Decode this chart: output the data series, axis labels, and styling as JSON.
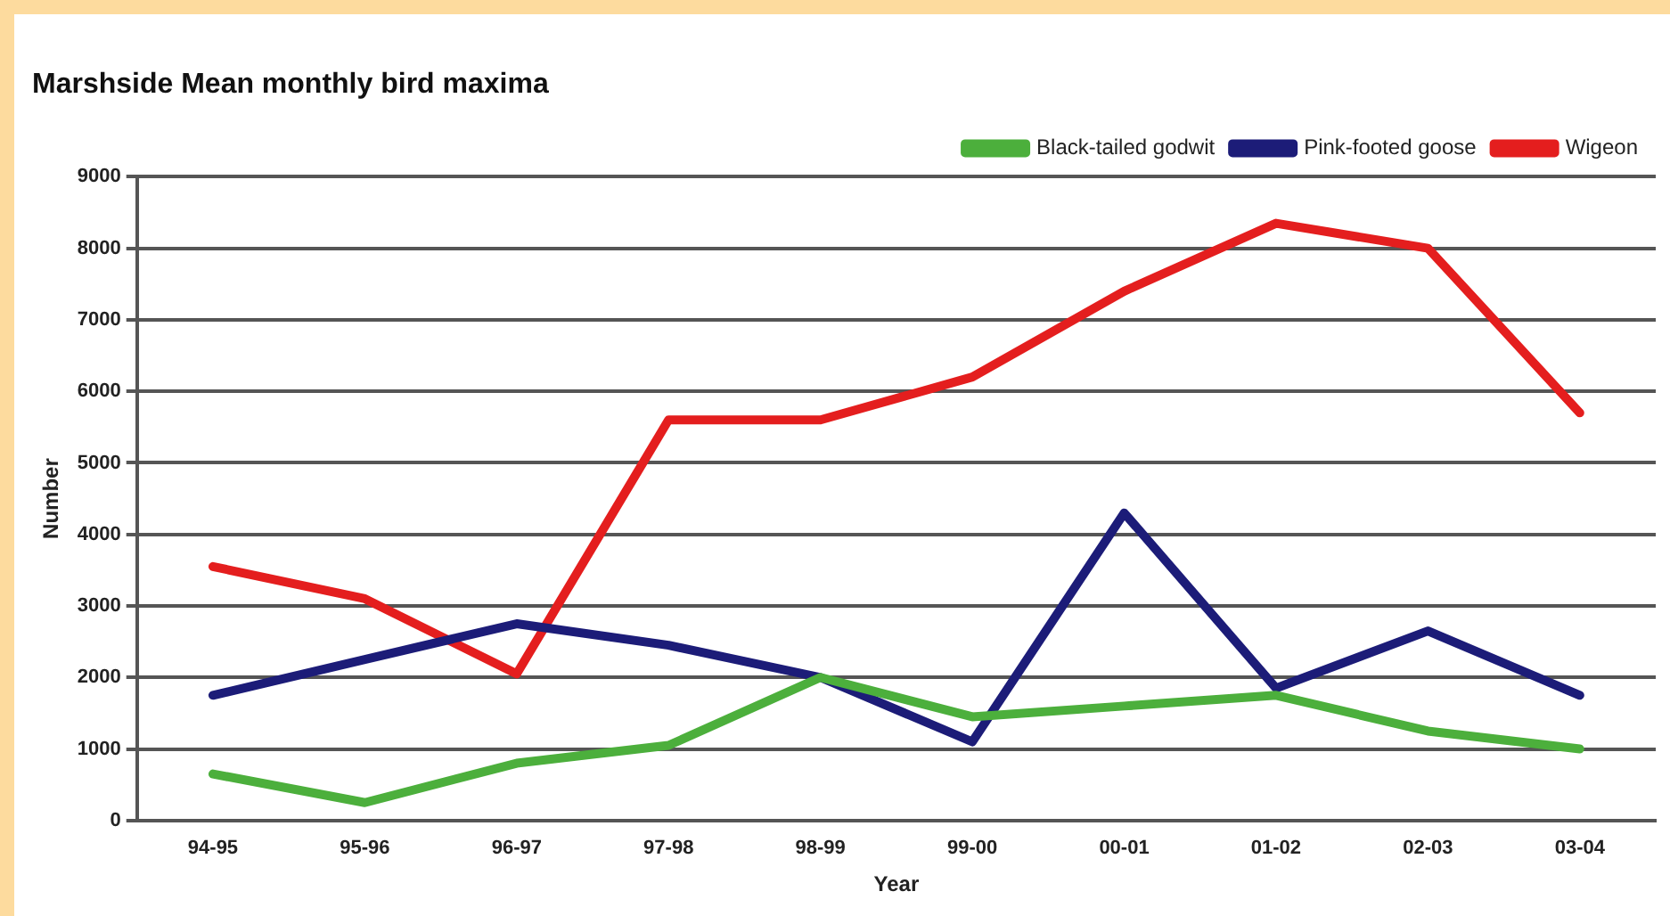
{
  "chart_data": {
    "type": "line",
    "title": "Marshside Mean monthly bird maxima",
    "xlabel": "Year",
    "ylabel": "Number",
    "categories": [
      "94-95",
      "95-96",
      "96-97",
      "97-98",
      "98-99",
      "99-00",
      "00-01",
      "01-02",
      "02-03",
      "03-04"
    ],
    "series": [
      {
        "name": "Black-tailed godwit",
        "color": "#4caf3c",
        "values": [
          650,
          250,
          800,
          1050,
          2000,
          1450,
          1600,
          1750,
          1250,
          1000
        ]
      },
      {
        "name": "Pink-footed goose",
        "color": "#1c1c78",
        "values": [
          1750,
          2250,
          2750,
          2450,
          2000,
          1100,
          4300,
          1850,
          2650,
          1750
        ]
      },
      {
        "name": "Wigeon",
        "color": "#e41e1e",
        "values": [
          3550,
          3100,
          2050,
          5600,
          5600,
          6200,
          7400,
          8350,
          8000,
          5700
        ]
      }
    ],
    "ylim": [
      0,
      9000
    ],
    "yticks": [
      0,
      1000,
      2000,
      3000,
      4000,
      5000,
      6000,
      7000,
      8000,
      9000
    ],
    "grid": "y",
    "legend": "top right",
    "marker": "none",
    "line_style": "solid"
  }
}
